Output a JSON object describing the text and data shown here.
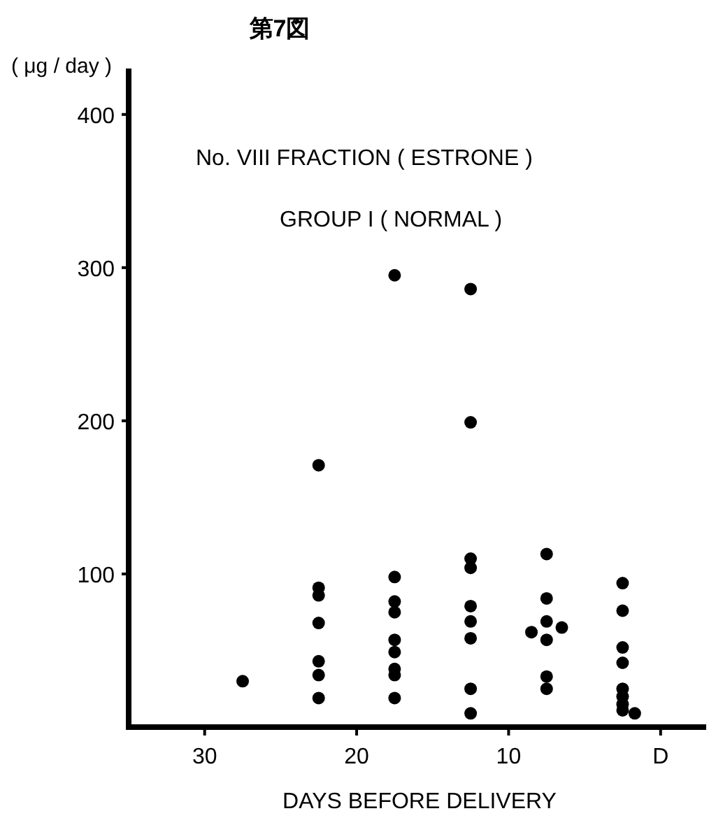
{
  "chart_data": {
    "type": "scatter",
    "title": "第7図",
    "ylabel": "( μg / day )",
    "xlabel": "DAYS BEFORE DELIVERY",
    "annotations": [
      "No. VIII FRACTION ( ESTRONE )",
      "GROUP I ( NORMAL )"
    ],
    "x": [
      27.5,
      22.5,
      22.5,
      22.5,
      22.5,
      22.5,
      22.5,
      22.5,
      17.5,
      17.5,
      17.5,
      17.5,
      17.5,
      17.5,
      17.5,
      17.5,
      17.5,
      12.5,
      12.5,
      12.5,
      12.5,
      12.5,
      12.5,
      12.5,
      12.5,
      12.5,
      7.5,
      7.5,
      7.5,
      7.5,
      7.5,
      7.5,
      8.5,
      6.5,
      2.5,
      2.5,
      2.5,
      2.5,
      2.5,
      2.5,
      2.5,
      2.5,
      1.7
    ],
    "values": [
      30,
      171,
      91,
      86,
      68,
      43,
      34,
      19,
      295,
      98,
      82,
      75,
      57,
      49,
      38,
      34,
      19,
      286,
      199,
      110,
      104,
      79,
      69,
      58,
      25,
      9,
      113,
      84,
      69,
      57,
      33,
      25,
      62,
      65,
      94,
      76,
      52,
      42,
      25,
      20,
      15,
      11,
      9
    ],
    "color": "#000000",
    "marker": "circle",
    "xlim": [
      35,
      -3
    ],
    "xticks": [
      30,
      20,
      10,
      {
        "value": 0,
        "label": "D"
      }
    ],
    "ylim": [
      0,
      430
    ],
    "yticks": [
      100,
      200,
      300,
      400
    ]
  }
}
